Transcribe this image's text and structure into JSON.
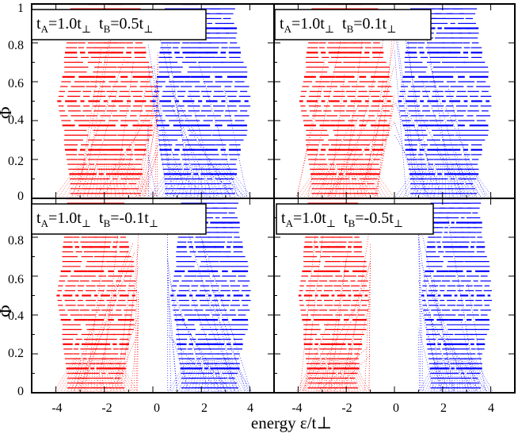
{
  "chart_data": {
    "type": "scatter",
    "xlabel": "energy ε/t⊥",
    "ylabel": "Φ",
    "xlim": [
      -5,
      5
    ],
    "ylim": [
      0,
      1
    ],
    "x_ticks": [
      "-4",
      "-2",
      "0",
      "2",
      "4"
    ],
    "y_ticks": [
      "0",
      "0.2",
      "0.4",
      "0.6",
      "0.8",
      "1"
    ],
    "series_colors": {
      "red": "#ff0000",
      "blue": "#0000ff"
    },
    "panels": [
      {
        "id": "top-left",
        "label": {
          "a": "t",
          "a_sub": "A",
          "a_val": "=1.0t",
          "a_perp": "⊥",
          "b": "t",
          "b_sub": "B",
          "b_val": "=0.5t",
          "b_perp": "⊥"
        },
        "tA": 1.0,
        "tB": 0.5,
        "red_band": [
          -4.1,
          0.2
        ],
        "blue_band": [
          -0.2,
          4.1
        ]
      },
      {
        "id": "top-right",
        "label": {
          "a": "t",
          "a_sub": "A",
          "a_val": "=1.0t",
          "a_perp": "⊥",
          "b": "t",
          "b_sub": "B",
          "b_val": "=0.1t",
          "b_perp": "⊥"
        },
        "tA": 1.0,
        "tB": 0.1,
        "red_band": [
          -4.1,
          0.0
        ],
        "blue_band": [
          0.0,
          4.1
        ]
      },
      {
        "id": "bottom-left",
        "label": {
          "a": "t",
          "a_sub": "A",
          "a_val": "=1.0t",
          "a_perp": "⊥",
          "b": "t",
          "b_sub": "B",
          "b_val": "=-0.1t",
          "b_perp": "⊥"
        },
        "tA": 1.0,
        "tB": -0.1,
        "red_band": [
          -4.1,
          -0.6
        ],
        "blue_band": [
          0.6,
          4.1
        ]
      },
      {
        "id": "bottom-right",
        "label": {
          "a": "t",
          "a_sub": "A",
          "a_val": "=1.0t",
          "a_perp": "⊥",
          "b": "t",
          "b_sub": "B",
          "b_val": "=-0.5t",
          "b_perp": "⊥"
        },
        "tA": 1.0,
        "tB": -0.5,
        "red_band": [
          -4.1,
          -1.0
        ],
        "blue_band": [
          1.0,
          4.1
        ]
      }
    ]
  }
}
